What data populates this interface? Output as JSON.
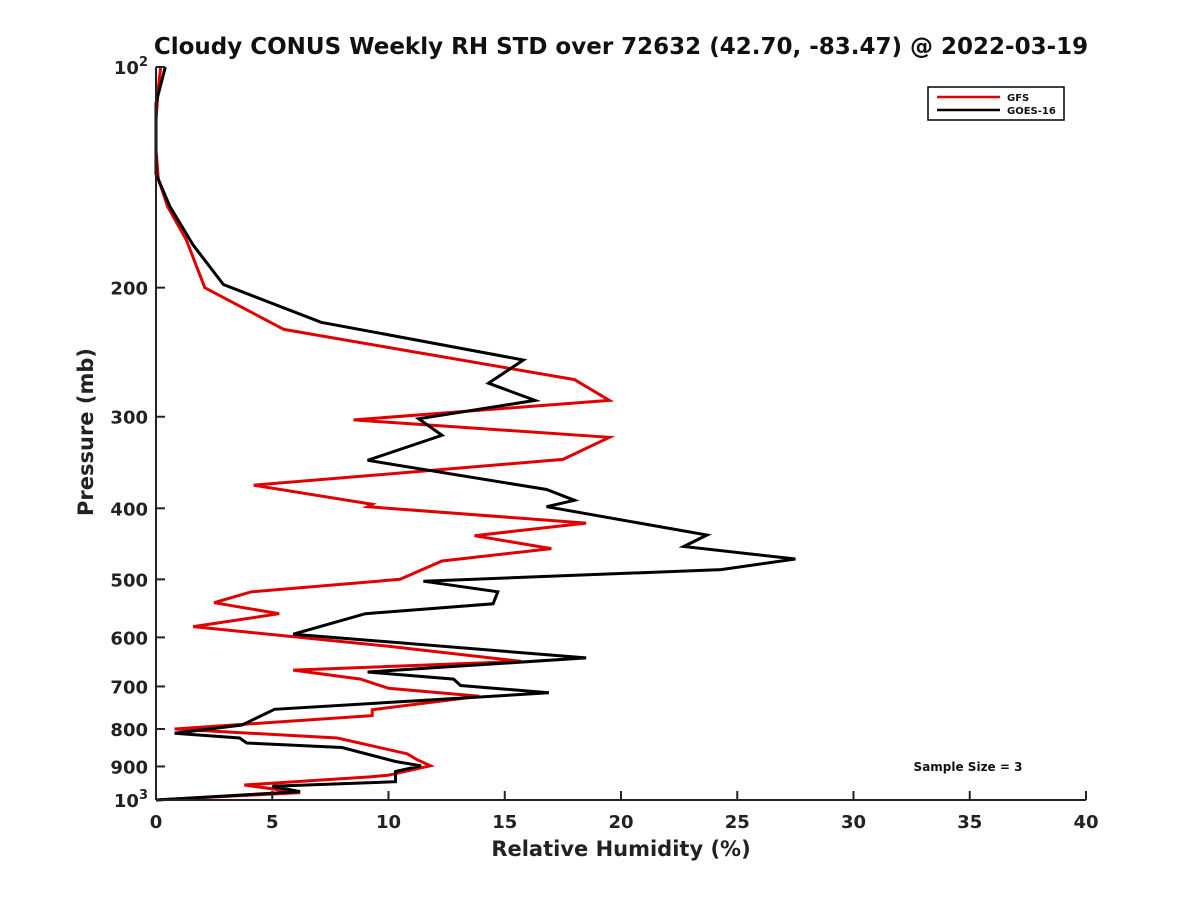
{
  "chart_data": {
    "type": "line",
    "title": "Cloudy CONUS Weekly RH STD over 72632 (42.70, -83.47) @ 2022-03-19",
    "xlabel": "Relative Humidity (%)",
    "ylabel": "Pressure (mb)",
    "xlim": [
      0,
      40
    ],
    "ylim": [
      100,
      1000
    ],
    "y_scale": "log",
    "y_reversed": true,
    "x_ticks": [
      0,
      5,
      10,
      15,
      20,
      25,
      30,
      35,
      40
    ],
    "x_tick_labels": [
      "0",
      "5",
      "10",
      "15",
      "20",
      "25",
      "30",
      "35",
      "40"
    ],
    "y_ticks": [
      100,
      200,
      300,
      400,
      500,
      600,
      700,
      800,
      900,
      1000
    ],
    "y_tick_labels": [
      {
        "base": "10",
        "sup": "2"
      },
      {
        "base": "200"
      },
      {
        "base": "300"
      },
      {
        "base": "400"
      },
      {
        "base": "500"
      },
      {
        "base": "600"
      },
      {
        "base": "700"
      },
      {
        "base": "800"
      },
      {
        "base": "900"
      },
      {
        "base": "10",
        "sup": "3"
      }
    ],
    "grid": false,
    "legend_position": "top-right",
    "annotation": "Sample Size = 3",
    "series": [
      {
        "name": "GFS",
        "color": "#e00000",
        "points": [
          [
            0.2,
            100
          ],
          [
            0.1,
            107
          ],
          [
            0.0,
            118
          ],
          [
            0.0,
            130
          ],
          [
            0.1,
            142
          ],
          [
            0.5,
            155
          ],
          [
            1.3,
            172
          ],
          [
            2.1,
            200
          ],
          [
            5.5,
            228
          ],
          [
            18.0,
            267
          ],
          [
            19.5,
            285
          ],
          [
            8.5,
            303
          ],
          [
            19.5,
            320
          ],
          [
            17.5,
            343
          ],
          [
            4.2,
            372
          ],
          [
            9.3,
            395
          ],
          [
            9.1,
            398
          ],
          [
            18.5,
            419
          ],
          [
            13.7,
            436
          ],
          [
            17.0,
            454
          ],
          [
            12.3,
            472
          ],
          [
            10.5,
            500
          ],
          [
            4.1,
            520
          ],
          [
            2.5,
            538
          ],
          [
            5.3,
            557
          ],
          [
            1.6,
            580
          ],
          [
            10.0,
            617
          ],
          [
            15.7,
            647
          ],
          [
            5.9,
            665
          ],
          [
            8.8,
            684
          ],
          [
            10.0,
            704
          ],
          [
            13.9,
            722
          ],
          [
            9.3,
            753
          ],
          [
            9.3,
            767
          ],
          [
            0.8,
            800
          ],
          [
            7.8,
            823
          ],
          [
            10.8,
            865
          ],
          [
            11.2,
            880
          ],
          [
            11.8,
            898
          ],
          [
            10.0,
            925
          ],
          [
            9.2,
            930
          ],
          [
            3.8,
            954
          ],
          [
            6.2,
            977
          ],
          [
            0.0,
            1000
          ]
        ]
      },
      {
        "name": "GOES-16",
        "color": "#000000",
        "points": [
          [
            0.4,
            100
          ],
          [
            0.0,
            112
          ],
          [
            0.0,
            140
          ],
          [
            0.6,
            155
          ],
          [
            1.6,
            175
          ],
          [
            2.9,
            198
          ],
          [
            7.1,
            223
          ],
          [
            15.8,
            251
          ],
          [
            14.3,
            270
          ],
          [
            16.3,
            285
          ],
          [
            11.3,
            302
          ],
          [
            12.3,
            318
          ],
          [
            9.1,
            344
          ],
          [
            16.8,
            377
          ],
          [
            18.0,
            390
          ],
          [
            16.8,
            398
          ],
          [
            23.7,
            435
          ],
          [
            22.7,
            451
          ],
          [
            27.5,
            469
          ],
          [
            24.3,
            485
          ],
          [
            11.5,
            503
          ],
          [
            14.7,
            520
          ],
          [
            14.5,
            540
          ],
          [
            9.0,
            557
          ],
          [
            5.9,
            594
          ],
          [
            18.5,
            640
          ],
          [
            9.1,
            669
          ],
          [
            12.8,
            684
          ],
          [
            13.1,
            698
          ],
          [
            16.9,
            714
          ],
          [
            5.1,
            752
          ],
          [
            3.7,
            790
          ],
          [
            0.8,
            811
          ],
          [
            3.6,
            823
          ],
          [
            3.9,
            836
          ],
          [
            8.0,
            848
          ],
          [
            10.3,
            886
          ],
          [
            11.4,
            898
          ],
          [
            10.3,
            914
          ],
          [
            10.3,
            944
          ],
          [
            5.0,
            958
          ],
          [
            6.2,
            974
          ],
          [
            0.0,
            1000
          ]
        ]
      }
    ]
  }
}
